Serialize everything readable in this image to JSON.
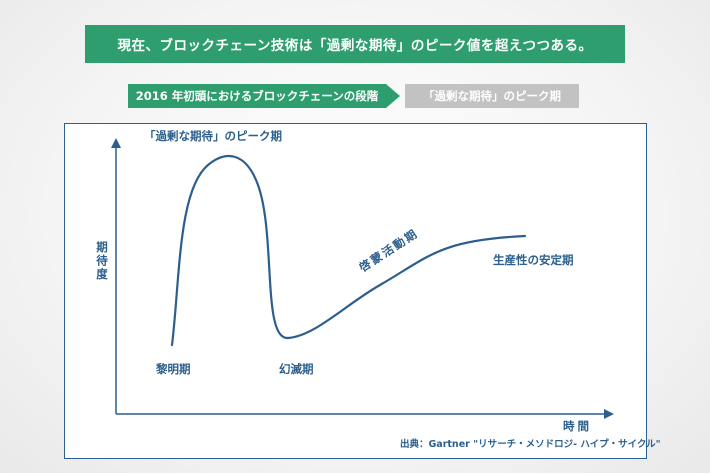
{
  "banner": {
    "text": "現在、ブロックチェーン技術は「過剰な期待」のピーク値を超えつつある。"
  },
  "stages": {
    "current": "2016 年初頭におけるブロックチェーンの段階",
    "next": "「過剰な期待」のピーク期"
  },
  "diagram": {
    "y_axis_label": "期待度",
    "x_axis_label": "時間",
    "phases": {
      "trigger": "黎明期",
      "peak": "「過剰な期待」のピーク期",
      "trough": "幻滅期",
      "slope": "啓蒙活動期",
      "plateau": "生産性の安定期"
    },
    "source": "出典：Gartner \"リサーチ・メソドロジ- ハイプ・サイクル\""
  },
  "colors": {
    "accent_green": "#2f9e6e",
    "inactive_gray": "#c2c2c2",
    "diagram_blue": "#2c5f8e"
  }
}
